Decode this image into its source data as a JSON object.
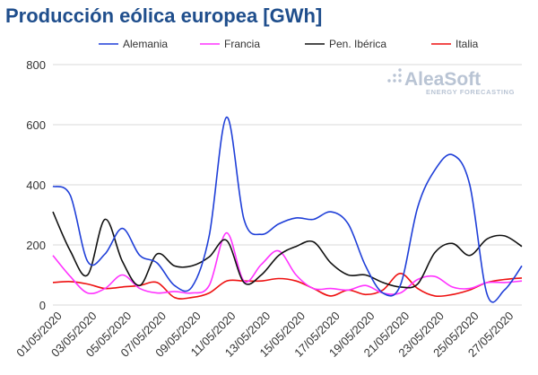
{
  "chart_data": {
    "type": "line",
    "title": "Producción eólica europea [GWh]",
    "xlabel": "",
    "ylabel": "",
    "ylim": [
      0,
      800
    ],
    "yticks": [
      0,
      200,
      400,
      600,
      800
    ],
    "grid": "horizontal",
    "legend_position": "top",
    "x": [
      "01/05/2020",
      "02/05/2020",
      "03/05/2020",
      "04/05/2020",
      "05/05/2020",
      "06/05/2020",
      "07/05/2020",
      "08/05/2020",
      "09/05/2020",
      "10/05/2020",
      "11/05/2020",
      "12/05/2020",
      "13/05/2020",
      "14/05/2020",
      "15/05/2020",
      "16/05/2020",
      "17/05/2020",
      "18/05/2020",
      "19/05/2020",
      "20/05/2020",
      "21/05/2020",
      "22/05/2020",
      "23/05/2020",
      "24/05/2020",
      "25/05/2020",
      "26/05/2020",
      "27/05/2020",
      "28/05/2020"
    ],
    "xtick_labels": [
      "01/05/2020",
      "03/05/2020",
      "05/05/2020",
      "07/05/2020",
      "09/05/2020",
      "11/05/2020",
      "13/05/2020",
      "15/05/2020",
      "17/05/2020",
      "19/05/2020",
      "21/05/2020",
      "23/05/2020",
      "25/05/2020",
      "27/05/2020"
    ],
    "series": [
      {
        "name": "Alemania",
        "color": "#1f3fd8",
        "values": [
          395,
          365,
          145,
          170,
          255,
          165,
          140,
          65,
          60,
          230,
          625,
          285,
          235,
          270,
          290,
          285,
          310,
          270,
          130,
          40,
          65,
          325,
          450,
          500,
          400,
          35,
          50,
          130
        ]
      },
      {
        "name": "Francia",
        "color": "#ff33ff",
        "values": [
          165,
          95,
          40,
          55,
          100,
          55,
          40,
          45,
          40,
          65,
          240,
          80,
          135,
          180,
          100,
          55,
          55,
          50,
          65,
          40,
          40,
          85,
          95,
          60,
          55,
          75,
          75,
          80
        ]
      },
      {
        "name": "Pen. Ibérica",
        "color": "#111111",
        "values": [
          310,
          180,
          100,
          285,
          145,
          65,
          170,
          130,
          130,
          160,
          215,
          75,
          100,
          165,
          195,
          210,
          140,
          100,
          100,
          75,
          60,
          70,
          175,
          205,
          165,
          220,
          230,
          195
        ]
      },
      {
        "name": "Italia",
        "color": "#ee1111",
        "values": [
          75,
          78,
          70,
          55,
          60,
          65,
          75,
          25,
          25,
          40,
          80,
          80,
          80,
          88,
          80,
          55,
          30,
          50,
          35,
          50,
          105,
          55,
          30,
          35,
          50,
          75,
          85,
          90
        ]
      }
    ]
  },
  "watermark": {
    "name": "AleaSoft",
    "tagline": "ENERGY FORECASTING"
  }
}
